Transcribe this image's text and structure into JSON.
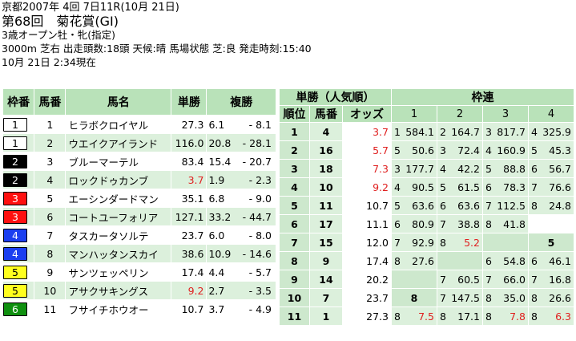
{
  "header": {
    "line1": "京都2007年 4回 7日11R(10月 21日)",
    "line2": "第68回　菊花賞(GI)",
    "line3": "3歳オープン牡・牝(指定)",
    "line4": "3000m 芝右 出走頭数:18頭 天候:晴 馬場状態 芝:良 発走時刻:15:40",
    "line5": "10月 21日 2:34現在"
  },
  "main_table": {
    "headers": [
      "枠番",
      "馬番",
      "馬名",
      "単勝",
      "複勝"
    ],
    "rows": [
      {
        "waku": "1",
        "umaban": "1",
        "name": "ヒラボクロイヤル",
        "win": "27.3",
        "win_red": false,
        "plc_lo": "6.1",
        "sep": "-",
        "plc_hi": "8.1"
      },
      {
        "waku": "1",
        "umaban": "2",
        "name": "ウエイクアイランド",
        "win": "116.0",
        "win_red": false,
        "plc_lo": "20.8",
        "sep": "-",
        "plc_hi": "28.1"
      },
      {
        "waku": "2",
        "umaban": "3",
        "name": "ブルーマーテル",
        "win": "83.4",
        "win_red": false,
        "plc_lo": "15.4",
        "sep": "-",
        "plc_hi": "20.7"
      },
      {
        "waku": "2",
        "umaban": "4",
        "name": "ロックドゥカンブ",
        "win": "3.7",
        "win_red": true,
        "plc_lo": "1.9",
        "sep": "-",
        "plc_hi": "2.3"
      },
      {
        "waku": "3",
        "umaban": "5",
        "name": "エーシンダードマン",
        "win": "35.1",
        "win_red": false,
        "plc_lo": "6.8",
        "sep": "-",
        "plc_hi": "9.0"
      },
      {
        "waku": "3",
        "umaban": "6",
        "name": "コートユーフォリア",
        "win": "127.1",
        "win_red": false,
        "plc_lo": "33.2",
        "sep": "-",
        "plc_hi": "44.7"
      },
      {
        "waku": "4",
        "umaban": "7",
        "name": "タスカータソルテ",
        "win": "23.7",
        "win_red": false,
        "plc_lo": "6.0",
        "sep": "-",
        "plc_hi": "8.0"
      },
      {
        "waku": "4",
        "umaban": "8",
        "name": "マンハッタンスカイ",
        "win": "38.6",
        "win_red": false,
        "plc_lo": "10.9",
        "sep": "-",
        "plc_hi": "14.6"
      },
      {
        "waku": "5",
        "umaban": "9",
        "name": "サンツェッペリン",
        "win": "17.4",
        "win_red": false,
        "plc_lo": "4.4",
        "sep": "-",
        "plc_hi": "5.7"
      },
      {
        "waku": "5",
        "umaban": "10",
        "name": "アサクサキングス",
        "win": "9.2",
        "win_red": true,
        "plc_lo": "2.7",
        "sep": "-",
        "plc_hi": "3.5"
      },
      {
        "waku": "6",
        "umaban": "11",
        "name": "フサイチホウオー",
        "win": "10.7",
        "win_red": false,
        "plc_lo": "3.7",
        "sep": "-",
        "plc_hi": "4.9"
      }
    ]
  },
  "ranking_table": {
    "title": "単勝（人気順）",
    "headers": [
      "順位",
      "馬番",
      "オッズ"
    ],
    "rows": [
      {
        "rank": "1",
        "umaban": "4",
        "odds": "3.7",
        "red": true
      },
      {
        "rank": "2",
        "umaban": "16",
        "odds": "5.7",
        "red": true
      },
      {
        "rank": "3",
        "umaban": "18",
        "odds": "7.3",
        "red": true
      },
      {
        "rank": "4",
        "umaban": "10",
        "odds": "9.2",
        "red": true
      },
      {
        "rank": "5",
        "umaban": "11",
        "odds": "10.7",
        "red": false
      },
      {
        "rank": "6",
        "umaban": "17",
        "odds": "11.1",
        "red": false
      },
      {
        "rank": "7",
        "umaban": "15",
        "odds": "12.0",
        "red": false
      },
      {
        "rank": "8",
        "umaban": "9",
        "odds": "17.4",
        "red": false
      },
      {
        "rank": "9",
        "umaban": "14",
        "odds": "20.2",
        "red": false
      },
      {
        "rank": "10",
        "umaban": "7",
        "odds": "23.7",
        "red": false
      },
      {
        "rank": "11",
        "umaban": "1",
        "odds": "27.3",
        "red": false
      }
    ]
  },
  "wakuren_table": {
    "title": "枠連",
    "col_headers": [
      "1",
      "2",
      "3",
      "4"
    ],
    "rows": [
      [
        {
          "k": "1",
          "v": "584.1"
        },
        {
          "k": "2",
          "v": "164.7"
        },
        {
          "k": "3",
          "v": "817.7"
        },
        {
          "k": "4",
          "v": "325.9"
        }
      ],
      [
        {
          "k": "5",
          "v": "50.6"
        },
        {
          "k": "3",
          "v": "72.4"
        },
        {
          "k": "4",
          "v": "160.9"
        },
        {
          "k": "5",
          "v": "45.3"
        }
      ],
      [
        {
          "k": "3",
          "v": "177.7"
        },
        {
          "k": "4",
          "v": "42.2"
        },
        {
          "k": "5",
          "v": "88.8"
        },
        {
          "k": "6",
          "v": "56.7"
        }
      ],
      [
        {
          "k": "4",
          "v": "90.5"
        },
        {
          "k": "5",
          "v": "61.5"
        },
        {
          "k": "6",
          "v": "78.3"
        },
        {
          "k": "7",
          "v": "76.6"
        }
      ],
      [
        {
          "k": "5",
          "v": "63.6"
        },
        {
          "k": "6",
          "v": "63.6"
        },
        {
          "k": "7",
          "v": "112.5"
        },
        {
          "k": "8",
          "v": "24.8"
        }
      ],
      [
        {
          "k": "6",
          "v": "80.9"
        },
        {
          "k": "7",
          "v": "38.8"
        },
        {
          "k": "8",
          "v": "41.8"
        },
        null
      ],
      [
        {
          "k": "7",
          "v": "92.9"
        },
        {
          "k": "8",
          "v": "5.2",
          "red": true
        },
        {
          "f": "blank"
        },
        {
          "f": "5"
        }
      ],
      [
        {
          "k": "8",
          "v": "27.6"
        },
        {
          "f": "blank"
        },
        {
          "k": "6",
          "v": "54.8"
        },
        {
          "k": "6",
          "v": "46.1"
        }
      ],
      [
        {
          "f": "blank"
        },
        {
          "k": "7",
          "v": "60.5"
        },
        {
          "k": "7",
          "v": "66.0"
        },
        {
          "k": "7",
          "v": "16.8"
        }
      ],
      [
        {
          "f": "8"
        },
        {
          "k": "7",
          "v": "147.5"
        },
        {
          "k": "8",
          "v": "35.0"
        },
        {
          "k": "8",
          "v": "26.6"
        }
      ],
      [
        {
          "k": "8",
          "v": "7.5",
          "red": true
        },
        {
          "k": "8",
          "v": "17.1"
        },
        {
          "k": "8",
          "v": "7.8",
          "red": true
        },
        {
          "k": "8",
          "v": "6.3",
          "red": true
        }
      ]
    ],
    "rows_layout_note": ""
  }
}
